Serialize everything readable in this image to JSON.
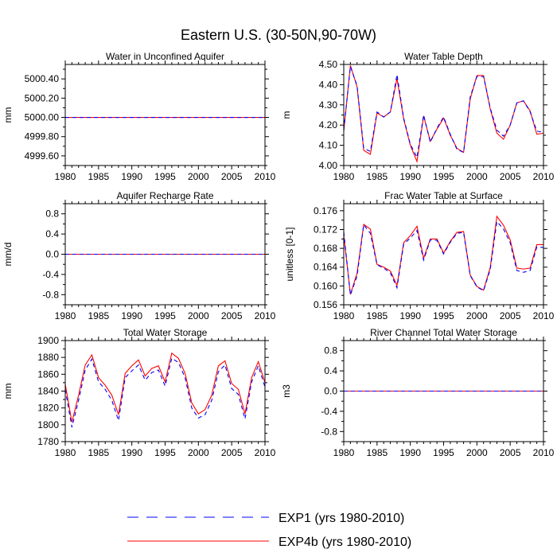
{
  "figure_title": "Eastern U.S. (30-50N,90-70W)",
  "legend": [
    {
      "label": "EXP1 (yrs 1980-2010)",
      "color": "#0000ff",
      "dash": "dashed"
    },
    {
      "label": "EXP4b (yrs 1980-2010)",
      "color": "#ff0000",
      "dash": "solid"
    }
  ],
  "chart_data": [
    {
      "type": "line",
      "title": "Water in Unconfined Aquifer",
      "xlabel": "",
      "ylabel": "mm",
      "xlim": [
        1980,
        2010
      ],
      "ylim": [
        4999.5,
        5000.55
      ],
      "xticks": [
        1980,
        1985,
        1990,
        1995,
        2000,
        2005,
        2010
      ],
      "xtick_labels": [
        "1980",
        "1985",
        "1990",
        "1995",
        "2000",
        "2005",
        "2010"
      ],
      "yticks": [
        4999.6,
        4999.8,
        5000.0,
        5000.2,
        5000.4
      ],
      "ytick_labels": [
        "4999.60",
        "4999.80",
        "5000.00",
        "5000.20",
        "5000.40"
      ],
      "x": [
        1980,
        1981,
        1982,
        1983,
        1984,
        1985,
        1986,
        1987,
        1988,
        1989,
        1990,
        1991,
        1992,
        1993,
        1994,
        1995,
        1996,
        1997,
        1998,
        1999,
        2000,
        2001,
        2002,
        2003,
        2004,
        2005,
        2006,
        2007,
        2008,
        2009,
        2010
      ],
      "series": [
        {
          "name": "EXP4b (yrs 1980-2010)",
          "values": [
            5000,
            5000,
            5000,
            5000,
            5000,
            5000,
            5000,
            5000,
            5000,
            5000,
            5000,
            5000,
            5000,
            5000,
            5000,
            5000,
            5000,
            5000,
            5000,
            5000,
            5000,
            5000,
            5000,
            5000,
            5000,
            5000,
            5000,
            5000,
            5000,
            5000,
            5000
          ]
        },
        {
          "name": "EXP1 (yrs 1980-2010)",
          "values": [
            5000,
            5000,
            5000,
            5000,
            5000,
            5000,
            5000,
            5000,
            5000,
            5000,
            5000,
            5000,
            5000,
            5000,
            5000,
            5000,
            5000,
            5000,
            5000,
            5000,
            5000,
            5000,
            5000,
            5000,
            5000,
            5000,
            5000,
            5000,
            5000,
            5000,
            5000
          ]
        }
      ]
    },
    {
      "type": "line",
      "title": "Water Table Depth",
      "xlabel": "",
      "ylabel": "m",
      "xlim": [
        1980,
        2010
      ],
      "ylim": [
        4.0,
        4.5
      ],
      "xticks": [
        1980,
        1985,
        1990,
        1995,
        2000,
        2005,
        2010
      ],
      "xtick_labels": [
        "1980",
        "1985",
        "1990",
        "1995",
        "2000",
        "2005",
        "2010"
      ],
      "yticks": [
        4.0,
        4.1,
        4.2,
        4.3,
        4.4,
        4.5
      ],
      "ytick_labels": [
        "4.00",
        "4.10",
        "4.20",
        "4.30",
        "4.40",
        "4.50"
      ],
      "x": [
        1980,
        1981,
        1982,
        1983,
        1984,
        1985,
        1986,
        1987,
        1988,
        1989,
        1990,
        1991,
        1992,
        1993,
        1994,
        1995,
        1996,
        1997,
        1998,
        1999,
        2000,
        2001,
        2002,
        2003,
        2004,
        2005,
        2006,
        2007,
        2008,
        2009,
        2010
      ],
      "series": [
        {
          "name": "EXP4b (yrs 1980-2010)",
          "values": [
            4.17,
            4.495,
            4.39,
            4.075,
            4.055,
            4.26,
            4.24,
            4.265,
            4.43,
            4.23,
            4.1,
            4.02,
            4.245,
            4.12,
            4.18,
            4.235,
            4.15,
            4.085,
            4.065,
            4.33,
            4.445,
            4.445,
            4.28,
            4.16,
            4.13,
            4.2,
            4.31,
            4.32,
            4.27,
            4.155,
            4.16
          ]
        },
        {
          "name": "EXP1 (yrs 1980-2010)",
          "values": [
            4.175,
            4.49,
            4.395,
            4.085,
            4.07,
            4.265,
            4.24,
            4.265,
            4.45,
            4.235,
            4.105,
            4.04,
            4.25,
            4.115,
            4.185,
            4.24,
            4.155,
            4.08,
            4.065,
            4.34,
            4.44,
            4.44,
            4.285,
            4.175,
            4.145,
            4.2,
            4.31,
            4.32,
            4.265,
            4.17,
            4.165
          ]
        }
      ]
    },
    {
      "type": "line",
      "title": "Aquifer Recharge Rate",
      "xlabel": "",
      "ylabel": "mm/d",
      "xlim": [
        1980,
        2010
      ],
      "ylim": [
        -1.0,
        1.0
      ],
      "xticks": [
        1980,
        1985,
        1990,
        1995,
        2000,
        2005,
        2010
      ],
      "xtick_labels": [
        "1980",
        "1985",
        "1990",
        "1995",
        "2000",
        "2005",
        "2010"
      ],
      "yticks": [
        -0.8,
        -0.4,
        0.0,
        0.4,
        0.8
      ],
      "ytick_labels": [
        "-0.8",
        "-0.4",
        "0.0",
        "0.4",
        "0.8"
      ],
      "x": [
        1980,
        1981,
        1982,
        1983,
        1984,
        1985,
        1986,
        1987,
        1988,
        1989,
        1990,
        1991,
        1992,
        1993,
        1994,
        1995,
        1996,
        1997,
        1998,
        1999,
        2000,
        2001,
        2002,
        2003,
        2004,
        2005,
        2006,
        2007,
        2008,
        2009,
        2010
      ],
      "series": [
        {
          "name": "EXP4b (yrs 1980-2010)",
          "values": [
            0,
            0,
            0,
            0,
            0,
            0,
            0,
            0,
            0,
            0,
            0,
            0,
            0,
            0,
            0,
            0,
            0,
            0,
            0,
            0,
            0,
            0,
            0,
            0,
            0,
            0,
            0,
            0,
            0,
            0,
            0
          ]
        },
        {
          "name": "EXP1 (yrs 1980-2010)",
          "values": [
            0,
            0,
            0,
            0,
            0,
            0,
            0,
            0,
            0,
            0,
            0,
            0,
            0,
            0,
            0,
            0,
            0,
            0,
            0,
            0,
            0,
            0,
            0,
            0,
            0,
            0,
            0,
            0,
            0,
            0,
            0
          ]
        }
      ]
    },
    {
      "type": "line",
      "title": "Frac Water Table at Surface",
      "xlabel": "",
      "ylabel": "unitless [0-1]",
      "xlim": [
        1980,
        2010
      ],
      "ylim": [
        0.156,
        0.1775
      ],
      "xticks": [
        1980,
        1985,
        1990,
        1995,
        2000,
        2005,
        2010
      ],
      "xtick_labels": [
        "1980",
        "1985",
        "1990",
        "1995",
        "2000",
        "2005",
        "2010"
      ],
      "yticks": [
        0.156,
        0.16,
        0.164,
        0.168,
        0.172,
        0.176
      ],
      "ytick_labels": [
        "0.156",
        "0.160",
        "0.164",
        "0.168",
        "0.172",
        "0.176"
      ],
      "x": [
        1980,
        1981,
        1982,
        1983,
        1984,
        1985,
        1986,
        1987,
        1988,
        1989,
        1990,
        1991,
        1992,
        1993,
        1994,
        1995,
        1996,
        1997,
        1998,
        1999,
        2000,
        2001,
        2002,
        2003,
        2004,
        2005,
        2006,
        2007,
        2008,
        2009,
        2010
      ],
      "series": [
        {
          "name": "EXP4b (yrs 1980-2010)",
          "values": [
            0.1708,
            0.1582,
            0.1627,
            0.1731,
            0.1721,
            0.1646,
            0.164,
            0.1632,
            0.1601,
            0.1692,
            0.1707,
            0.1727,
            0.1659,
            0.17,
            0.17,
            0.167,
            0.1695,
            0.1714,
            0.1716,
            0.1623,
            0.1599,
            0.1591,
            0.1639,
            0.1748,
            0.1729,
            0.1698,
            0.1638,
            0.1636,
            0.1638,
            0.1688,
            0.1688
          ]
        },
        {
          "name": "EXP1 (yrs 1980-2010)",
          "values": [
            0.1715,
            0.1581,
            0.1621,
            0.173,
            0.1712,
            0.1645,
            0.1638,
            0.1628,
            0.1596,
            0.1689,
            0.1702,
            0.1718,
            0.1655,
            0.1698,
            0.1697,
            0.1668,
            0.1693,
            0.1712,
            0.1714,
            0.1622,
            0.1598,
            0.159,
            0.1635,
            0.1737,
            0.1721,
            0.1692,
            0.1633,
            0.1629,
            0.1633,
            0.1683,
            0.1682
          ]
        }
      ]
    },
    {
      "type": "line",
      "title": "Total Water Storage",
      "xlabel": "",
      "ylabel": "mm",
      "xlim": [
        1980,
        2010
      ],
      "ylim": [
        1780,
        1900
      ],
      "xticks": [
        1980,
        1985,
        1990,
        1995,
        2000,
        2005,
        2010
      ],
      "xtick_labels": [
        "1980",
        "1985",
        "1990",
        "1995",
        "2000",
        "2005",
        "2010"
      ],
      "yticks": [
        1780,
        1800,
        1820,
        1840,
        1860,
        1880,
        1900
      ],
      "ytick_labels": [
        "1780",
        "1800",
        "1820",
        "1840",
        "1860",
        "1880",
        "1900"
      ],
      "x": [
        1980,
        1981,
        1982,
        1983,
        1984,
        1985,
        1986,
        1987,
        1988,
        1989,
        1990,
        1991,
        1992,
        1993,
        1994,
        1995,
        1996,
        1997,
        1998,
        1999,
        2000,
        2001,
        2002,
        2003,
        2004,
        2005,
        2006,
        2007,
        2008,
        2009,
        2010
      ],
      "series": [
        {
          "name": "EXP4b (yrs 1980-2010)",
          "values": [
            1848,
            1803,
            1835,
            1871,
            1883,
            1856,
            1847,
            1835,
            1812,
            1861,
            1870,
            1877,
            1858,
            1867,
            1870,
            1851,
            1885,
            1879,
            1861,
            1826,
            1813,
            1818,
            1835,
            1870,
            1876,
            1849,
            1842,
            1813,
            1856,
            1875,
            1850
          ]
        },
        {
          "name": "EXP1 (yrs 1980-2010)",
          "values": [
            1842,
            1797,
            1829,
            1865,
            1878,
            1851,
            1842,
            1829,
            1805,
            1856,
            1864,
            1871,
            1853,
            1862,
            1865,
            1846,
            1879,
            1874,
            1856,
            1820,
            1808,
            1812,
            1829,
            1863,
            1871,
            1843,
            1836,
            1807,
            1851,
            1870,
            1845
          ]
        }
      ]
    },
    {
      "type": "line",
      "title": "River Channel Total Water Storage",
      "xlabel": "",
      "ylabel": "m3",
      "xlim": [
        1980,
        2010
      ],
      "ylim": [
        -1.0,
        1.0
      ],
      "xticks": [
        1980,
        1985,
        1990,
        1995,
        2000,
        2005,
        2010
      ],
      "xtick_labels": [
        "1980",
        "1985",
        "1990",
        "1995",
        "2000",
        "2005",
        "2010"
      ],
      "yticks": [
        -0.8,
        -0.4,
        0.0,
        0.4,
        0.8
      ],
      "ytick_labels": [
        "-0.8",
        "-0.4",
        "0.0",
        "0.4",
        "0.8"
      ],
      "x": [
        1980,
        1981,
        1982,
        1983,
        1984,
        1985,
        1986,
        1987,
        1988,
        1989,
        1990,
        1991,
        1992,
        1993,
        1994,
        1995,
        1996,
        1997,
        1998,
        1999,
        2000,
        2001,
        2002,
        2003,
        2004,
        2005,
        2006,
        2007,
        2008,
        2009,
        2010
      ],
      "series": [
        {
          "name": "EXP4b (yrs 1980-2010)",
          "values": [
            0,
            0,
            0,
            0,
            0,
            0,
            0,
            0,
            0,
            0,
            0,
            0,
            0,
            0,
            0,
            0,
            0,
            0,
            0,
            0,
            0,
            0,
            0,
            0,
            0,
            0,
            0,
            0,
            0,
            0,
            0
          ]
        },
        {
          "name": "EXP1 (yrs 1980-2010)",
          "values": [
            0,
            0,
            0,
            0,
            0,
            0,
            0,
            0,
            0,
            0,
            0,
            0,
            0,
            0,
            0,
            0,
            0,
            0,
            0,
            0,
            0,
            0,
            0,
            0,
            0,
            0,
            0,
            0,
            0,
            0,
            0
          ]
        }
      ]
    }
  ]
}
